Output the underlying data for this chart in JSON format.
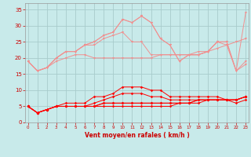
{
  "xlabel": "Vent moyen/en rafales ( km/h )",
  "x": [
    0,
    1,
    2,
    3,
    4,
    5,
    6,
    7,
    8,
    9,
    10,
    11,
    12,
    13,
    14,
    15,
    16,
    17,
    18,
    19,
    20,
    21,
    22,
    23
  ],
  "series_light": [
    [
      19,
      16,
      17,
      19,
      20,
      21,
      21,
      20,
      20,
      20,
      20,
      20,
      20,
      20,
      21,
      21,
      21,
      21,
      22,
      22,
      23,
      24,
      25,
      26
    ],
    [
      19,
      16,
      17,
      20,
      22,
      22,
      24,
      24,
      26,
      27,
      28,
      25,
      25,
      21,
      21,
      21,
      21,
      21,
      21,
      22,
      25,
      24,
      16,
      19
    ],
    [
      19,
      16,
      17,
      20,
      22,
      22,
      24,
      25,
      27,
      28,
      32,
      31,
      33,
      31,
      26,
      24,
      19,
      21,
      21,
      22,
      25,
      25,
      16,
      18
    ],
    [
      19,
      16,
      17,
      20,
      22,
      22,
      24,
      25,
      27,
      28,
      32,
      31,
      33,
      31,
      26,
      24,
      19,
      21,
      21,
      22,
      25,
      25,
      16,
      34
    ]
  ],
  "series_dark": [
    [
      5,
      3,
      4,
      5,
      6,
      6,
      6,
      8,
      8,
      9,
      11,
      11,
      11,
      10,
      10,
      8,
      8,
      8,
      8,
      8,
      8,
      7,
      7,
      8
    ],
    [
      5,
      3,
      4,
      5,
      5,
      5,
      5,
      5,
      5,
      5,
      5,
      5,
      5,
      5,
      5,
      5,
      6,
      6,
      6,
      7,
      7,
      7,
      7,
      8
    ],
    [
      5,
      3,
      4,
      5,
      5,
      5,
      5,
      5,
      6,
      6,
      6,
      6,
      6,
      6,
      6,
      6,
      6,
      6,
      7,
      7,
      7,
      7,
      7,
      8
    ],
    [
      5,
      3,
      4,
      5,
      5,
      5,
      5,
      5,
      6,
      6,
      6,
      6,
      6,
      6,
      6,
      6,
      6,
      6,
      7,
      7,
      7,
      7,
      6,
      7
    ],
    [
      5,
      3,
      4,
      5,
      5,
      5,
      5,
      6,
      7,
      8,
      9,
      9,
      9,
      8,
      8,
      7,
      7,
      7,
      7,
      7,
      7,
      7,
      7,
      8
    ]
  ],
  "light_color": "#f09090",
  "dark_color": "#ff0000",
  "bg_color": "#c8eaea",
  "grid_color": "#a8cccc",
  "ylim": [
    0,
    37
  ],
  "yticks": [
    0,
    5,
    10,
    15,
    20,
    25,
    30,
    35
  ],
  "tick_color": "#cc0000",
  "label_color": "#cc0000"
}
